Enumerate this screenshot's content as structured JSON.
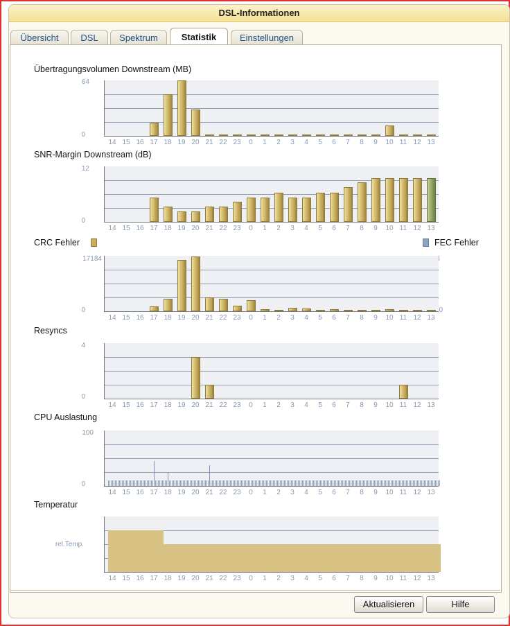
{
  "window": {
    "title": "DSL-Informationen"
  },
  "tabs": [
    {
      "label": "Übersicht",
      "active": false
    },
    {
      "label": "DSL",
      "active": false
    },
    {
      "label": "Spektrum",
      "active": false
    },
    {
      "label": "Statistik",
      "active": true
    },
    {
      "label": "Einstellungen",
      "active": false
    }
  ],
  "hours": [
    "14",
    "15",
    "16",
    "17",
    "18",
    "19",
    "20",
    "21",
    "22",
    "23",
    "0",
    "1",
    "2",
    "3",
    "4",
    "5",
    "6",
    "7",
    "8",
    "9",
    "10",
    "11",
    "12",
    "13"
  ],
  "buttons": {
    "refresh": "Aktualisieren",
    "help": "Hilfe"
  },
  "chart_data": [
    {
      "type": "bar",
      "title": "Übertragungsvolumen Downstream (MB)",
      "ylim": [
        0,
        64
      ],
      "yticks": [
        "64",
        "0"
      ],
      "values": [
        0,
        0,
        0,
        15,
        48,
        64,
        30,
        1,
        1,
        1,
        1,
        1,
        1,
        1,
        1,
        1,
        1,
        1,
        1,
        1,
        12,
        1,
        1,
        1
      ]
    },
    {
      "type": "bar",
      "title": "SNR-Margin Downstream (dB)",
      "ylim": [
        0,
        12
      ],
      "yticks": [
        "12",
        "0"
      ],
      "values": [
        0,
        0,
        0,
        5.3,
        3.3,
        2.3,
        2.3,
        3.3,
        3.3,
        4.3,
        5.3,
        5.3,
        6.3,
        5.3,
        5.3,
        6.3,
        6.3,
        7.5,
        8.5,
        9.5,
        9.5,
        9.5,
        9.5,
        9.5
      ],
      "highlight_index": 23
    },
    {
      "type": "bar",
      "title": "CRC Fehler",
      "legend": [
        {
          "name": "CRC Fehler",
          "color": "#c9ac5c",
          "placement": "top-left"
        },
        {
          "name": "FEC Fehler",
          "color": "#8ea2c2",
          "placement": "top-right"
        }
      ],
      "ylim": [
        0,
        17184
      ],
      "yticks": [
        "17184",
        "0"
      ],
      "ylim_right": [
        0,
        4
      ],
      "yticks_right": [
        "4",
        "0"
      ],
      "values": [
        0,
        0,
        0,
        1600,
        3800,
        16000,
        17000,
        4300,
        3800,
        1700,
        3400,
        600,
        400,
        1000,
        800,
        400,
        600,
        400,
        200,
        200,
        600,
        400,
        300,
        200
      ]
    },
    {
      "type": "bar",
      "title": "Resyncs",
      "ylim": [
        0,
        4
      ],
      "yticks": [
        "4",
        "0"
      ],
      "values": [
        0,
        0,
        0,
        0,
        0,
        0,
        3,
        1,
        0,
        0,
        0,
        0,
        0,
        0,
        0,
        0,
        0,
        0,
        0,
        0,
        0,
        1,
        0,
        0
      ]
    },
    {
      "type": "bar",
      "title": "CPU Auslastung",
      "ylim": [
        0,
        100
      ],
      "yticks": [
        "100",
        "0"
      ],
      "baseline": 10,
      "spikes": [
        {
          "hour": "17",
          "value": 45
        },
        {
          "hour": "18",
          "value": 25
        },
        {
          "hour": "21",
          "value": 38
        }
      ]
    },
    {
      "type": "bar",
      "title": "Temperatur",
      "ytick_label": "rel.Temp.",
      "levels": [
        3,
        3,
        3,
        3,
        2,
        2,
        2,
        2,
        2,
        2,
        2,
        2,
        2,
        2,
        2,
        2,
        2,
        2,
        2,
        2,
        2,
        2,
        2,
        2
      ]
    }
  ]
}
